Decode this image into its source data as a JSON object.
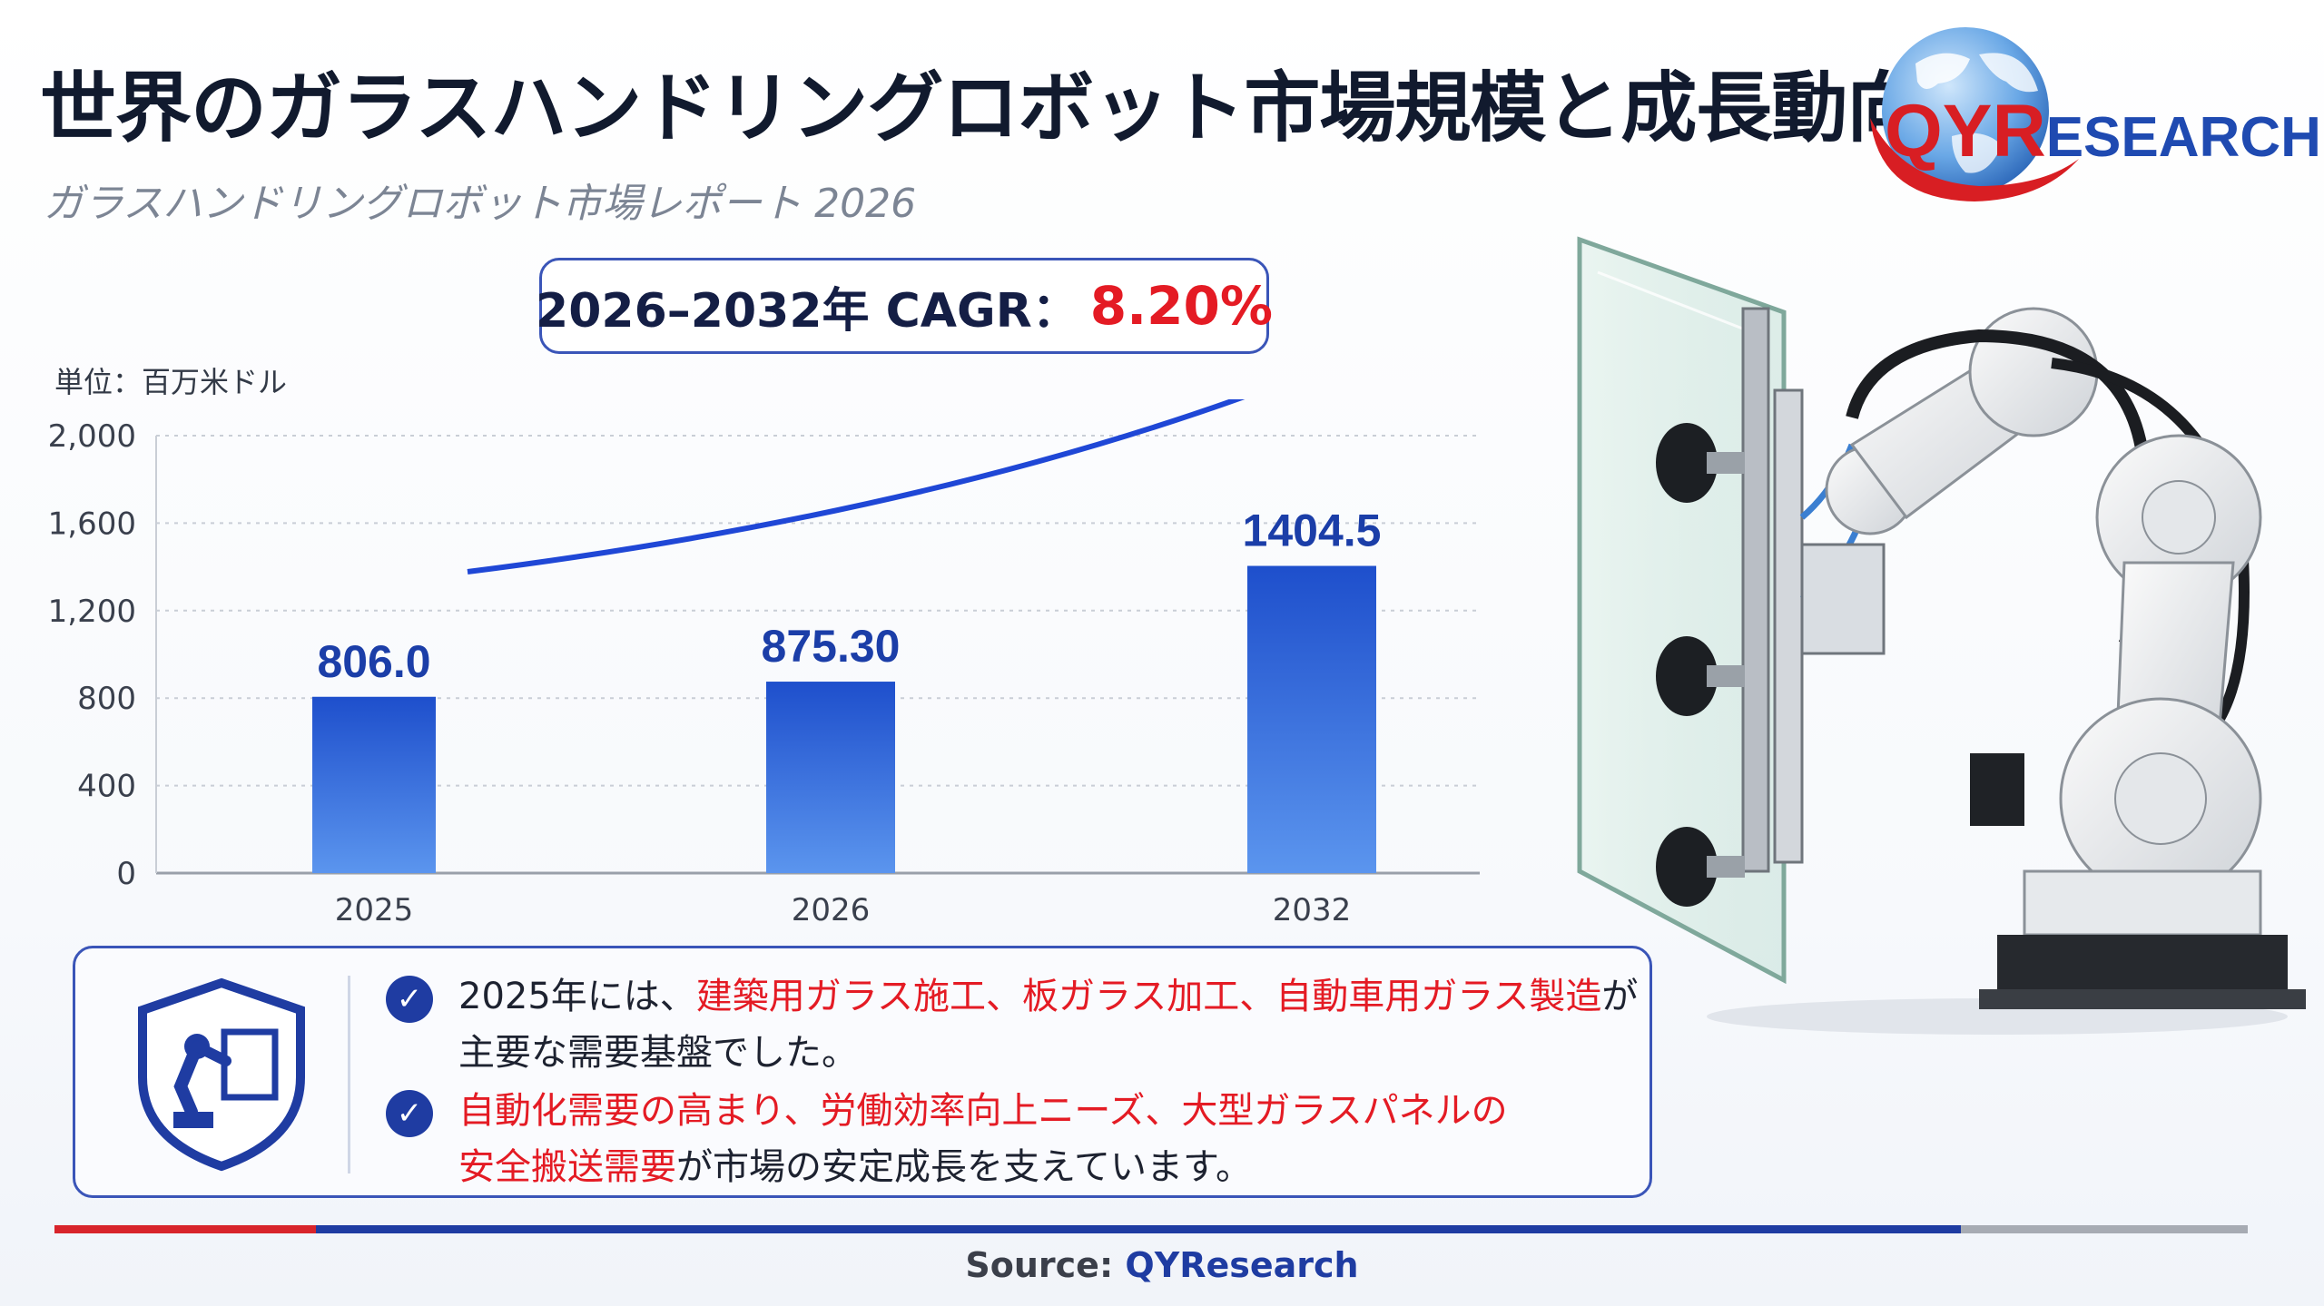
{
  "header": {
    "title": "世界のガラスハンドリングロボット市場規模と成長動向",
    "subtitle": "ガラスハンドリングロボット市場レポート 2026"
  },
  "logo": {
    "brand_q": "QYR",
    "brand_rest": "ESEARCH"
  },
  "cagr": {
    "label": "2026–2032年 CAGR：",
    "value": "8.20%"
  },
  "unit_label": "単位：百万米ドル",
  "chart_data": {
    "type": "bar",
    "categories": [
      "2025",
      "2026",
      "2032"
    ],
    "values": [
      806.0,
      875.3,
      1404.5
    ],
    "value_labels": [
      "806.0",
      "875.30",
      "1404.5"
    ],
    "ylabel": "単位：百万米ドル",
    "ylim": [
      0,
      2000
    ],
    "yticks": [
      0,
      400,
      800,
      1200,
      1600,
      2000
    ],
    "ytick_labels": [
      "0",
      "400",
      "800",
      "1,200",
      "1,600",
      "2,000"
    ],
    "grid": true,
    "colors": {
      "bar_top": "#1e4fcc",
      "bar_bottom": "#5b95ee",
      "trend_arrow": "#1f47d6"
    }
  },
  "info": {
    "b1_l1_pre": "2025年には、",
    "b1_l1_red": "建築用ガラス施工、板ガラス加工、自動車用ガラス製造",
    "b1_l1_post": "が",
    "b1_l2": "主要な需要基盤でした。",
    "b2_l1_red": "自動化需要の高まり、労働効率向上ニーズ、大型ガラスパネルの",
    "b2_l2_red": "安全搬送需要",
    "b2_l2_post": "が市場の安定成長を支えています。",
    "check_glyph": "✓"
  },
  "footer": {
    "source_label": "Source:",
    "source_name": "QYResearch"
  },
  "colors": {
    "accent_red": "#e41b24",
    "accent_blue": "#1f3ca2",
    "line_gray": "#a7abb3"
  }
}
